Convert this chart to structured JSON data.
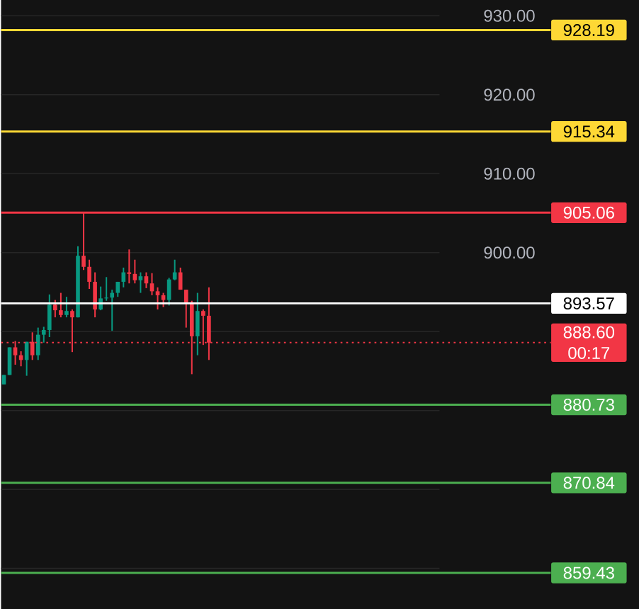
{
  "chart_data": {
    "type": "candlestick",
    "categories": [
      null,
      null,
      null,
      null,
      null,
      null,
      null,
      null,
      null,
      null,
      null,
      null,
      null,
      null,
      null,
      null,
      null,
      null,
      null,
      null,
      null,
      null,
      null,
      null,
      null,
      null,
      null,
      null,
      null,
      null,
      null,
      null,
      null,
      null,
      null,
      null,
      null,
      null,
      null,
      null,
      null,
      null,
      null,
      null,
      null,
      null,
      null,
      null,
      null,
      null,
      null,
      null,
      null,
      null,
      null,
      null,
      null,
      null,
      null,
      null,
      null,
      null,
      null,
      null,
      null,
      null,
      null,
      null,
      null,
      null,
      null,
      null,
      null,
      null,
      null,
      null,
      null
    ],
    "ohlc": [
      [
        883.3,
        884.5,
        883.3,
        884.5
      ],
      [
        884.5,
        888.0,
        884.5,
        888.0
      ],
      [
        888.0,
        888.8,
        885.8,
        887.0
      ],
      [
        887.0,
        887.5,
        885.6,
        886.4
      ],
      [
        886.4,
        888.7,
        884.4,
        888.7
      ],
      [
        888.7,
        889.9,
        886.4,
        887.0
      ],
      [
        887.0,
        890.5,
        886.4,
        889.6
      ],
      [
        889.6,
        890.6,
        888.6,
        890.2
      ],
      [
        890.2,
        894.7,
        889.3,
        893.4
      ],
      [
        893.4,
        894.0,
        891.8,
        892.7
      ],
      [
        892.7,
        894.9,
        891.8,
        892.1
      ],
      [
        892.1,
        894.4,
        891.8,
        892.6
      ],
      [
        892.6,
        892.8,
        887.4,
        891.8
      ],
      [
        891.8,
        900.8,
        891.8,
        899.6
      ],
      [
        899.6,
        905.0,
        897.8,
        898.2
      ],
      [
        898.2,
        899.1,
        895.4,
        896.3
      ],
      [
        896.3,
        897.5,
        891.8,
        892.8
      ],
      [
        892.8,
        895.7,
        892.7,
        894.2
      ],
      [
        894.2,
        896.9,
        893.9,
        894.3
      ],
      [
        894.3,
        895.3,
        890.1,
        894.9
      ],
      [
        894.9,
        896.3,
        894.4,
        896.3
      ],
      [
        896.3,
        898.1,
        895.6,
        897.5
      ],
      [
        897.5,
        900.4,
        896.1,
        897.3
      ],
      [
        897.3,
        899.1,
        896.1,
        896.5
      ],
      [
        896.5,
        897.5,
        894.9,
        897.0
      ],
      [
        897.0,
        897.5,
        895.5,
        896.1
      ],
      [
        896.1,
        897.4,
        894.6,
        895.1
      ],
      [
        895.1,
        895.6,
        892.8,
        894.6
      ],
      [
        894.6,
        894.9,
        893.1,
        894.0
      ],
      [
        894.0,
        896.8,
        893.3,
        896.6
      ],
      [
        896.6,
        899.1,
        896.5,
        897.5
      ],
      [
        897.5,
        898.1,
        895.3,
        895.3
      ],
      [
        895.3,
        895.3,
        890.5,
        893.7
      ],
      [
        893.7,
        893.9,
        884.6,
        889.4
      ],
      [
        889.4,
        894.9,
        887.0,
        892.6
      ],
      [
        892.6,
        892.8,
        888.3,
        892.0
      ],
      [
        892.0,
        895.6,
        886.4,
        888.6
      ],
      null,
      null,
      null,
      null,
      null,
      null,
      null,
      null,
      null,
      null,
      null,
      null,
      null,
      null,
      null,
      null,
      null,
      null,
      null,
      null,
      null,
      null,
      null,
      null,
      null,
      null,
      null,
      null,
      null,
      null,
      null,
      null,
      null,
      null,
      null,
      null,
      null,
      null,
      null,
      null
    ],
    "colors": [
      "#089981",
      "#089981",
      "#f23645",
      "#f23645",
      "#089981",
      "#f23645",
      "#089981",
      "#089981",
      "#089981",
      "#f23645",
      "#f23645",
      "#089981",
      "#f23645",
      "#089981",
      "#f23645",
      "#f23645",
      "#f23645",
      "#089981",
      "#089981",
      "#089981",
      "#089981",
      "#089981",
      "#f23645",
      "#f23645",
      "#089981",
      "#f23645",
      "#f23645",
      "#f23645",
      "#f23645",
      "#089981",
      "#089981",
      "#f23645",
      "#f23645",
      "#f23645",
      "#089981",
      "#f23645",
      "#f23645",
      null,
      null,
      null,
      null,
      null,
      null,
      null,
      null,
      null,
      null,
      null,
      null,
      null,
      null,
      null,
      null,
      null,
      null,
      null,
      null,
      null,
      null,
      null,
      null,
      null,
      null,
      null,
      null,
      null,
      null,
      null,
      null,
      null,
      null,
      null,
      null,
      null,
      null,
      null,
      null
    ],
    "ylim": [
      854.8,
      932
    ],
    "yticks": [
      {
        "value": 860,
        "label": null
      },
      {
        "value": 870,
        "label": null
      },
      {
        "value": 880,
        "label": null
      },
      {
        "value": 890,
        "label": null
      },
      {
        "value": 900,
        "label": "900.00"
      },
      {
        "value": 910,
        "label": "910.00"
      },
      {
        "value": 920,
        "label": "920.00"
      },
      {
        "value": 930,
        "label": "930.00"
      }
    ],
    "grid": "y",
    "ref_lines": [
      {
        "axis": "y",
        "value": 928.19,
        "label": "928.19",
        "color": "#fdd835"
      },
      {
        "axis": "y",
        "value": 915.34,
        "label": "915.34",
        "color": "#fdd835"
      },
      {
        "axis": "y",
        "value": 905.06,
        "label": "905.06",
        "color": "#f23645"
      },
      {
        "axis": "y",
        "value": 893.57,
        "label": "893.57",
        "color": "#ffffff"
      },
      {
        "axis": "y",
        "value": 888.6,
        "label": "888.60",
        "color": "#f23645",
        "line_style": "dotted"
      },
      {
        "axis": "y",
        "value": 880.73,
        "label": "880.73",
        "color": "#4caf50"
      },
      {
        "axis": "y",
        "value": 870.84,
        "label": "870.84",
        "color": "#4caf50"
      },
      {
        "axis": "y",
        "value": 859.43,
        "label": "859.43",
        "color": "#4caf50"
      }
    ],
    "annotations": [
      "00:17"
    ]
  }
}
